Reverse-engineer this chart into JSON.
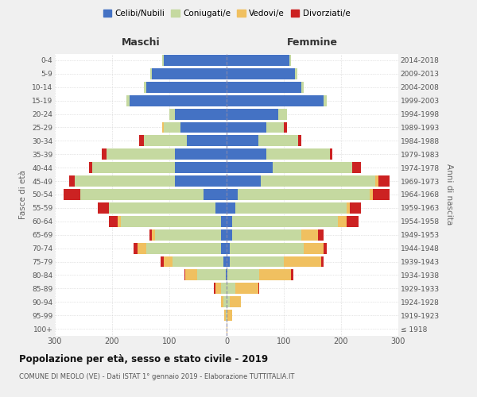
{
  "age_groups": [
    "100+",
    "95-99",
    "90-94",
    "85-89",
    "80-84",
    "75-79",
    "70-74",
    "65-69",
    "60-64",
    "55-59",
    "50-54",
    "45-49",
    "40-44",
    "35-39",
    "30-34",
    "25-29",
    "20-24",
    "15-19",
    "10-14",
    "5-9",
    "0-4"
  ],
  "birth_years": [
    "≤ 1918",
    "1919-1923",
    "1924-1928",
    "1929-1933",
    "1934-1938",
    "1939-1943",
    "1944-1948",
    "1949-1953",
    "1954-1958",
    "1959-1963",
    "1964-1968",
    "1969-1973",
    "1974-1978",
    "1979-1983",
    "1984-1988",
    "1989-1993",
    "1994-1998",
    "1999-2003",
    "2004-2008",
    "2009-2013",
    "2014-2018"
  ],
  "maschi": {
    "celibi": [
      0,
      0,
      0,
      0,
      2,
      5,
      10,
      10,
      10,
      20,
      40,
      90,
      90,
      90,
      70,
      80,
      90,
      170,
      140,
      130,
      110
    ],
    "coniugati": [
      0,
      2,
      5,
      10,
      50,
      90,
      130,
      115,
      175,
      185,
      215,
      175,
      145,
      120,
      75,
      30,
      10,
      5,
      5,
      3,
      2
    ],
    "vedovi": [
      0,
      2,
      5,
      10,
      20,
      15,
      15,
      5,
      5,
      0,
      0,
      0,
      0,
      0,
      0,
      3,
      0,
      0,
      0,
      0,
      0
    ],
    "divorziati": [
      0,
      0,
      0,
      2,
      2,
      5,
      8,
      5,
      15,
      20,
      30,
      10,
      5,
      8,
      8,
      0,
      0,
      0,
      0,
      0,
      0
    ]
  },
  "femmine": {
    "nubili": [
      0,
      0,
      0,
      0,
      2,
      5,
      5,
      10,
      10,
      15,
      20,
      60,
      80,
      70,
      55,
      70,
      90,
      170,
      130,
      120,
      110
    ],
    "coniugate": [
      0,
      2,
      5,
      15,
      55,
      95,
      130,
      120,
      185,
      195,
      230,
      200,
      140,
      110,
      70,
      30,
      15,
      5,
      5,
      3,
      2
    ],
    "vedove": [
      2,
      8,
      20,
      40,
      55,
      65,
      35,
      30,
      15,
      5,
      5,
      5,
      0,
      0,
      0,
      0,
      0,
      0,
      0,
      0,
      0
    ],
    "divorziate": [
      0,
      0,
      0,
      2,
      5,
      5,
      5,
      10,
      20,
      20,
      30,
      20,
      15,
      5,
      5,
      5,
      0,
      0,
      0,
      0,
      0
    ]
  },
  "colors": {
    "celibi": "#4472c4",
    "coniugati": "#c5d9a0",
    "vedovi": "#f0c060",
    "divorziati": "#cc2222"
  },
  "legend_labels": [
    "Celibi/Nubili",
    "Coniugati/e",
    "Vedovi/e",
    "Divorziati/e"
  ],
  "title": "Popolazione per età, sesso e stato civile - 2019",
  "subtitle": "COMUNE DI MEOLO (VE) - Dati ISTAT 1° gennaio 2019 - Elaborazione TUTTITALIA.IT",
  "xlabel_left": "Maschi",
  "xlabel_right": "Femmine",
  "ylabel_left": "Fasce di età",
  "ylabel_right": "Anni di nascita",
  "bg_color": "#f0f0f0",
  "plot_bg_color": "#ffffff",
  "grid_color": "#cccccc",
  "xlim": 300
}
